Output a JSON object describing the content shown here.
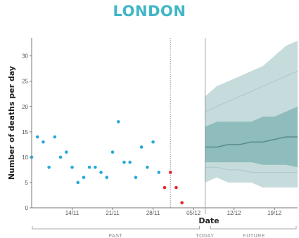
{
  "chart_data": {
    "type": "scatter",
    "title": "LONDON",
    "xlabel": "Date",
    "ylabel": "Number of deaths per day",
    "ylim": [
      0,
      33
    ],
    "yticks": [
      0,
      5,
      10,
      15,
      20,
      25,
      30
    ],
    "xlim": [
      "2020-11-07",
      "2020-12-23"
    ],
    "xticks": [
      {
        "date": "2020-11-14",
        "label": "14/11"
      },
      {
        "date": "2020-11-21",
        "label": "21/11"
      },
      {
        "date": "2020-11-28",
        "label": "28/11"
      },
      {
        "date": "2020-12-05",
        "label": "05/12"
      },
      {
        "date": "2020-12-12",
        "label": "12/12"
      },
      {
        "date": "2020-12-19",
        "label": "19/12"
      }
    ],
    "grid": false,
    "periods": [
      "PAST",
      "TODAY",
      "FUTURE"
    ],
    "incomplete_from": "2020-12-01",
    "today": "2020-12-07",
    "colors": {
      "observed": "#26a9d8",
      "incomplete": "#e3262d",
      "band_outer": "#c6dbdb",
      "band_inner": "#8fbcbc",
      "median": "#5a8c8f",
      "axis": "#777777"
    },
    "series": [
      {
        "points": [
          {
            "x": "2020-11-07",
            "y": 10
          },
          {
            "x": "2020-11-08",
            "y": 14
          },
          {
            "x": "2020-11-09",
            "y": 13
          },
          {
            "x": "2020-11-10",
            "y": 8
          },
          {
            "x": "2020-11-11",
            "y": 14
          },
          {
            "x": "2020-11-12",
            "y": 10
          },
          {
            "x": "2020-11-13",
            "y": 11
          },
          {
            "x": "2020-11-14",
            "y": 8
          },
          {
            "x": "2020-11-15",
            "y": 5
          },
          {
            "x": "2020-11-16",
            "y": 6
          },
          {
            "x": "2020-11-17",
            "y": 8
          },
          {
            "x": "2020-11-18",
            "y": 8
          },
          {
            "x": "2020-11-19",
            "y": 7
          },
          {
            "x": "2020-11-20",
            "y": 6
          },
          {
            "x": "2020-11-21",
            "y": 11
          },
          {
            "x": "2020-11-22",
            "y": 17
          },
          {
            "x": "2020-11-23",
            "y": 9
          },
          {
            "x": "2020-11-24",
            "y": 9
          },
          {
            "x": "2020-11-25",
            "y": 6
          },
          {
            "x": "2020-11-26",
            "y": 12
          },
          {
            "x": "2020-11-27",
            "y": 8
          },
          {
            "x": "2020-11-28",
            "y": 13
          },
          {
            "x": "2020-11-29",
            "y": 7
          }
        ]
      },
      {
        "points": [
          {
            "x": "2020-11-30",
            "y": 4
          },
          {
            "x": "2020-12-01",
            "y": 7
          },
          {
            "x": "2020-12-02",
            "y": 4
          },
          {
            "x": "2020-12-03",
            "y": 1
          }
        ]
      }
    ],
    "projection": {
      "dates": [
        "2020-12-07",
        "2020-12-09",
        "2020-12-11",
        "2020-12-13",
        "2020-12-15",
        "2020-12-17",
        "2020-12-19",
        "2020-12-21",
        "2020-12-23"
      ],
      "upper_outer": [
        22,
        24,
        25,
        26,
        27,
        28,
        30,
        32,
        33
      ],
      "upper_inner": [
        16,
        17,
        17,
        17,
        17,
        18,
        18,
        19,
        20
      ],
      "median": [
        12,
        12,
        12.5,
        12.5,
        13,
        13,
        13.5,
        14,
        14
      ],
      "lower_inner": [
        9,
        9,
        9,
        9,
        9,
        8.5,
        8.5,
        8.5,
        8
      ],
      "lower_outer": [
        5,
        6,
        5,
        5,
        5,
        4,
        4,
        4,
        4
      ],
      "upper_mid": [
        19,
        20,
        21,
        22,
        23,
        24,
        25,
        26,
        27
      ],
      "lower_mid": [
        8,
        8,
        7.5,
        7.5,
        7,
        7,
        7,
        7,
        7
      ]
    }
  }
}
